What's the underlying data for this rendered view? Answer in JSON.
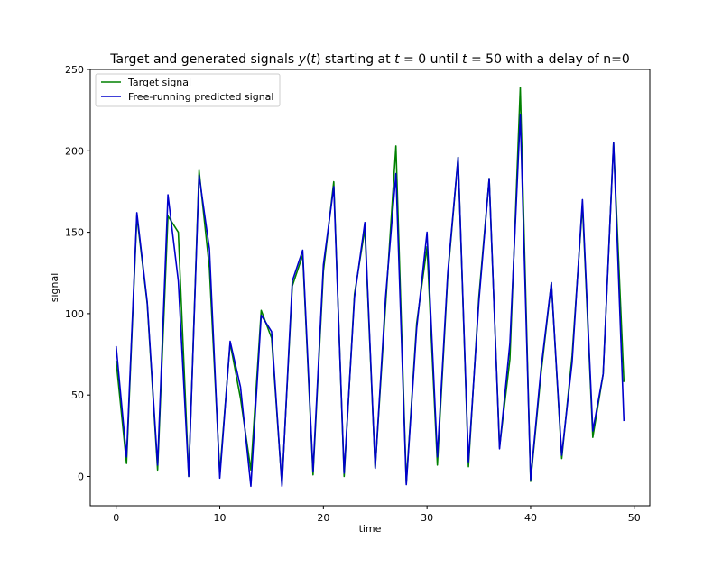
{
  "chart_data": {
    "type": "line",
    "title_parts": [
      "Target and generated signals ",
      "y",
      "(",
      "t",
      ") starting at ",
      "t",
      " = 0 until ",
      "t",
      " = 50 with a delay of n=0"
    ],
    "xlabel": "time",
    "ylabel": "signal",
    "xlim": [
      -2.5,
      51.5
    ],
    "ylim": [
      -18,
      250
    ],
    "xticks": [
      0,
      10,
      20,
      30,
      40,
      50
    ],
    "yticks": [
      0,
      50,
      100,
      150,
      200,
      250
    ],
    "grid": false,
    "legend_position": "top-left",
    "x": [
      0,
      1,
      2,
      3,
      4,
      5,
      6,
      7,
      8,
      9,
      10,
      11,
      12,
      13,
      14,
      15,
      16,
      17,
      18,
      19,
      20,
      21,
      22,
      23,
      24,
      25,
      26,
      27,
      28,
      29,
      30,
      31,
      32,
      33,
      34,
      35,
      36,
      37,
      38,
      39,
      40,
      41,
      42,
      43,
      44,
      45,
      46,
      47,
      48,
      49
    ],
    "series": [
      {
        "name": "Target signal",
        "color": "#008000",
        "values": [
          71,
          8,
          160,
          106,
          4,
          160,
          150,
          0,
          188,
          128,
          2,
          82,
          48,
          4,
          102,
          85,
          -5,
          117,
          136,
          1,
          126,
          181,
          0,
          112,
          152,
          5,
          105,
          203,
          -4,
          94,
          141,
          7,
          123,
          196,
          6,
          110,
          183,
          18,
          72,
          239,
          -3,
          63,
          119,
          11,
          74,
          167,
          24,
          63,
          205,
          58
        ]
      },
      {
        "name": "Free-running predicted signal",
        "color": "#0000cc",
        "values": [
          80,
          12,
          162,
          107,
          7,
          173,
          120,
          0,
          185,
          140,
          -1,
          83,
          55,
          -6,
          99,
          89,
          -6,
          120,
          139,
          3,
          130,
          178,
          2,
          110,
          156,
          5,
          110,
          186,
          -5,
          91,
          150,
          12,
          125,
          196,
          9,
          107,
          183,
          17,
          82,
          222,
          -2,
          66,
          119,
          13,
          70,
          170,
          28,
          63,
          205,
          34
        ]
      }
    ]
  }
}
